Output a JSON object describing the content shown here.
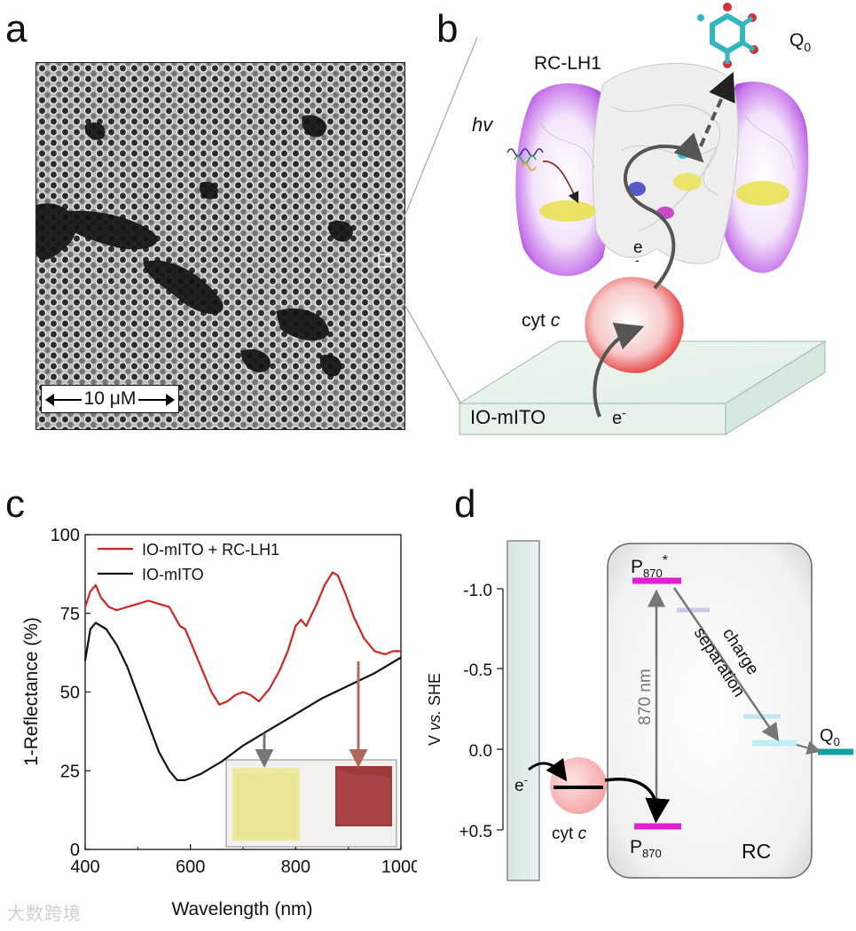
{
  "panels": {
    "a": "a",
    "b": "b",
    "c": "c",
    "d": "d"
  },
  "panel_a": {
    "scale_bar": "10 μM"
  },
  "panel_b": {
    "rc_lh1": "RC-LH1",
    "q0_main": "Q",
    "q0_sub": "0",
    "hv": "hv",
    "e_minus": "e",
    "cyt_c_main": "cyt",
    "cyt_c_italic": "c",
    "io_mito": "IO-mITO",
    "e_bottom": "e",
    "minus": "-"
  },
  "panel_d": {
    "ylabel_v": "V",
    "ylabel_vs": "vs.",
    "ylabel_she": "SHE",
    "ticks": [
      "-1.0",
      "-0.5",
      "0.0",
      "+0.5"
    ],
    "p870_star": "P",
    "p870_sub": "870",
    "star": "*",
    "p870": "P",
    "nm_label": "870 nm",
    "charge": "charge",
    "separation": "separation",
    "q0": "Q",
    "q0_sub": "0",
    "rc": "RC",
    "e_minus": "e",
    "minus": "-",
    "cyt_c_main": "cyt",
    "cyt_c_italic": "c"
  },
  "watermark": "大数跨境",
  "chart_data": {
    "type": "line",
    "title": "",
    "xlabel": "Wavelength (nm)",
    "ylabel": "1-Reflectance (%)",
    "xlim": [
      400,
      1000
    ],
    "ylim": [
      0,
      100
    ],
    "xticks": [
      "400",
      "600",
      "800",
      "1000"
    ],
    "yticks": [
      "0",
      "25",
      "50",
      "75",
      "100"
    ],
    "legend_position": "top-left",
    "series": [
      {
        "name": "IO-mITO + RC-LH1",
        "color": "#d4241f",
        "x": [
          400,
          410,
          420,
          430,
          445,
          460,
          480,
          500,
          520,
          540,
          560,
          570,
          580,
          590,
          600,
          620,
          640,
          655,
          670,
          685,
          700,
          715,
          730,
          750,
          770,
          785,
          800,
          810,
          820,
          840,
          855,
          870,
          880,
          895,
          910,
          930,
          950,
          970,
          985,
          1000
        ],
        "y": [
          77,
          82,
          84,
          80,
          77,
          76,
          77,
          78,
          79,
          78,
          77,
          74,
          71,
          70,
          66,
          58,
          50,
          46,
          47,
          49,
          50,
          49,
          47,
          51,
          57,
          63,
          71,
          73,
          71,
          78,
          84,
          88,
          87,
          81,
          74,
          67,
          63,
          62,
          63,
          63
        ]
      },
      {
        "name": "IO-mITO",
        "color": "#111111",
        "x": [
          400,
          410,
          420,
          440,
          460,
          480,
          500,
          520,
          540,
          560,
          575,
          590,
          605,
          620,
          640,
          660,
          700,
          750,
          800,
          850,
          900,
          950,
          1000
        ],
        "y": [
          60,
          70,
          72,
          70,
          65,
          58,
          49,
          40,
          31,
          25,
          22,
          22,
          23,
          24,
          26,
          28,
          33,
          38,
          43,
          48,
          52,
          56,
          61
        ]
      }
    ]
  }
}
